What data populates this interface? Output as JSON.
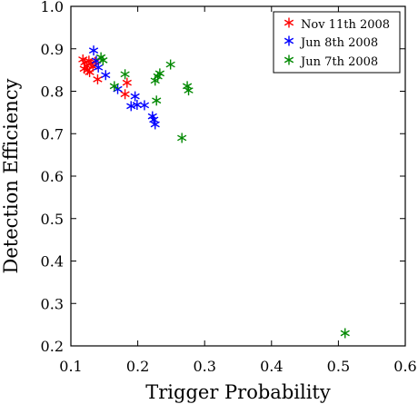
{
  "chart_data": {
    "type": "scatter",
    "xlabel": "Trigger Probability",
    "ylabel": "Detection Efficiency",
    "xlim": [
      0.1,
      0.6
    ],
    "ylim": [
      0.2,
      1.0
    ],
    "xticks": [
      "0.1",
      "0.2",
      "0.3",
      "0.4",
      "0.5",
      "0.6"
    ],
    "yticks": [
      "0.2",
      "0.3",
      "0.4",
      "0.5",
      "0.6",
      "0.7",
      "0.8",
      "0.9",
      "1.0"
    ],
    "grid": false,
    "legend_position": "top-right",
    "series": [
      {
        "name": "Nov 11th 2008",
        "color": "#ff0000",
        "points": [
          [
            0.118,
            0.875
          ],
          [
            0.121,
            0.868
          ],
          [
            0.124,
            0.86
          ],
          [
            0.127,
            0.872
          ],
          [
            0.13,
            0.865
          ],
          [
            0.12,
            0.853
          ],
          [
            0.125,
            0.85
          ],
          [
            0.128,
            0.845
          ],
          [
            0.133,
            0.858
          ],
          [
            0.136,
            0.869
          ],
          [
            0.14,
            0.828
          ],
          [
            0.184,
            0.82
          ],
          [
            0.181,
            0.793
          ]
        ]
      },
      {
        "name": "Jun 8th 2008",
        "color": "#0000ff",
        "points": [
          [
            0.134,
            0.896
          ],
          [
            0.138,
            0.872
          ],
          [
            0.141,
            0.856
          ],
          [
            0.152,
            0.838
          ],
          [
            0.17,
            0.805
          ],
          [
            0.19,
            0.765
          ],
          [
            0.196,
            0.788
          ],
          [
            0.199,
            0.768
          ],
          [
            0.21,
            0.767
          ],
          [
            0.222,
            0.741
          ],
          [
            0.224,
            0.733
          ],
          [
            0.226,
            0.722
          ]
        ]
      },
      {
        "name": "Jun 7th 2008",
        "color": "#008800",
        "points": [
          [
            0.145,
            0.88
          ],
          [
            0.148,
            0.873
          ],
          [
            0.165,
            0.812
          ],
          [
            0.181,
            0.84
          ],
          [
            0.226,
            0.825
          ],
          [
            0.23,
            0.835
          ],
          [
            0.233,
            0.842
          ],
          [
            0.228,
            0.778
          ],
          [
            0.249,
            0.863
          ],
          [
            0.266,
            0.69
          ],
          [
            0.274,
            0.812
          ],
          [
            0.276,
            0.802
          ],
          [
            0.51,
            0.23
          ]
        ]
      }
    ]
  }
}
